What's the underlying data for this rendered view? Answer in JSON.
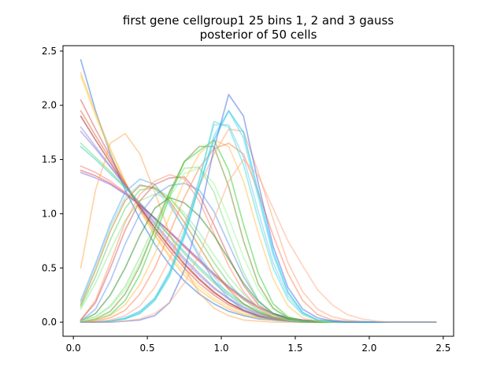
{
  "chart_data": {
    "type": "line",
    "title": "first gene cellgroup1 25 bins 1, 2 and 3 gauss",
    "subtitle": "posterior of 50 cells",
    "xlabel": "",
    "ylabel": "",
    "xlim": [
      -0.07,
      2.57
    ],
    "ylim": [
      -0.13,
      2.55
    ],
    "xticks": [
      0.0,
      0.5,
      1.0,
      1.5,
      2.0,
      2.5
    ],
    "xtick_labels": [
      "0.0",
      "0.5",
      "1.0",
      "1.5",
      "2.0",
      "2.5"
    ],
    "yticks": [
      0.0,
      0.5,
      1.0,
      1.5,
      2.0,
      2.5
    ],
    "ytick_labels": [
      "0.0",
      "0.5",
      "1.0",
      "1.5",
      "2.0",
      "2.5"
    ],
    "grid": false,
    "x": [
      0.05,
      0.15,
      0.25,
      0.35,
      0.45,
      0.55,
      0.65,
      0.75,
      0.85,
      0.95,
      1.05,
      1.15,
      1.25,
      1.35,
      1.45,
      1.55,
      1.65,
      1.75,
      1.85,
      1.95,
      2.05,
      2.15,
      2.25,
      2.35,
      2.45
    ],
    "series": [
      {
        "color": "#1f77d4",
        "values": [
          2.42,
          1.95,
          1.55,
          1.22,
          0.95,
          0.72,
          0.53,
          0.38,
          0.26,
          0.17,
          0.1,
          0.06,
          0.03,
          0.02,
          0.01,
          0.0,
          0.0,
          0.0,
          0.0,
          0.0,
          0.0,
          0.0,
          0.0,
          0.0,
          0.0
        ]
      },
      {
        "color": "#ffb347",
        "values": [
          2.3,
          1.93,
          1.6,
          1.3,
          1.03,
          0.8,
          0.6,
          0.43,
          0.3,
          0.2,
          0.12,
          0.07,
          0.04,
          0.02,
          0.01,
          0.0,
          0.0,
          0.0,
          0.0,
          0.0,
          0.0,
          0.0,
          0.0,
          0.0,
          0.0
        ]
      },
      {
        "color": "#ffd24d",
        "values": [
          2.27,
          1.9,
          1.58,
          1.29,
          1.03,
          0.81,
          0.62,
          0.46,
          0.33,
          0.22,
          0.14,
          0.08,
          0.04,
          0.02,
          0.01,
          0.0,
          0.0,
          0.0,
          0.0,
          0.0,
          0.0,
          0.0,
          0.0,
          0.0,
          0.0
        ]
      },
      {
        "color": "#d9534f",
        "values": [
          2.05,
          1.78,
          1.53,
          1.28,
          1.05,
          0.84,
          0.66,
          0.5,
          0.36,
          0.25,
          0.16,
          0.1,
          0.05,
          0.03,
          0.01,
          0.0,
          0.0,
          0.0,
          0.0,
          0.0,
          0.0,
          0.0,
          0.0,
          0.0,
          0.0
        ]
      },
      {
        "color": "#e8623a",
        "values": [
          1.95,
          1.72,
          1.5,
          1.28,
          1.07,
          0.87,
          0.69,
          0.53,
          0.39,
          0.27,
          0.18,
          0.11,
          0.06,
          0.03,
          0.01,
          0.0,
          0.0,
          0.0,
          0.0,
          0.0,
          0.0,
          0.0,
          0.0,
          0.0,
          0.0
        ]
      },
      {
        "color": "#a01818",
        "values": [
          1.9,
          1.68,
          1.47,
          1.26,
          1.06,
          0.87,
          0.7,
          0.54,
          0.4,
          0.28,
          0.18,
          0.11,
          0.06,
          0.03,
          0.01,
          0.0,
          0.0,
          0.0,
          0.0,
          0.0,
          0.0,
          0.0,
          0.0,
          0.0,
          0.0
        ]
      },
      {
        "color": "#8c8cd9",
        "values": [
          1.8,
          1.62,
          1.44,
          1.26,
          1.08,
          0.9,
          0.73,
          0.57,
          0.43,
          0.31,
          0.21,
          0.13,
          0.07,
          0.04,
          0.02,
          0.01,
          0.0,
          0.0,
          0.0,
          0.0,
          0.0,
          0.0,
          0.0,
          0.0,
          0.0
        ]
      },
      {
        "color": "#9370db",
        "values": [
          1.76,
          1.6,
          1.43,
          1.26,
          1.09,
          0.92,
          0.75,
          0.59,
          0.45,
          0.32,
          0.22,
          0.14,
          0.08,
          0.04,
          0.02,
          0.01,
          0.0,
          0.0,
          0.0,
          0.0,
          0.0,
          0.0,
          0.0,
          0.0,
          0.0
        ]
      },
      {
        "color": "#66dd66",
        "values": [
          1.65,
          1.52,
          1.39,
          1.25,
          1.1,
          0.95,
          0.79,
          0.63,
          0.49,
          0.36,
          0.25,
          0.16,
          0.09,
          0.05,
          0.02,
          0.01,
          0.0,
          0.0,
          0.0,
          0.0,
          0.0,
          0.0,
          0.0,
          0.0,
          0.0
        ]
      },
      {
        "color": "#33c8c8",
        "values": [
          1.62,
          1.5,
          1.37,
          1.24,
          1.1,
          0.95,
          0.8,
          0.65,
          0.51,
          0.38,
          0.27,
          0.17,
          0.1,
          0.05,
          0.02,
          0.01,
          0.0,
          0.0,
          0.0,
          0.0,
          0.0,
          0.0,
          0.0,
          0.0,
          0.0
        ]
      },
      {
        "color": "#f08080",
        "values": [
          1.44,
          1.38,
          1.3,
          1.2,
          1.09,
          0.96,
          0.83,
          0.69,
          0.56,
          0.43,
          0.31,
          0.21,
          0.13,
          0.07,
          0.04,
          0.02,
          0.01,
          0.0,
          0.0,
          0.0,
          0.0,
          0.0,
          0.0,
          0.0,
          0.0
        ]
      },
      {
        "color": "#e04848",
        "values": [
          1.4,
          1.35,
          1.28,
          1.19,
          1.08,
          0.96,
          0.83,
          0.7,
          0.57,
          0.44,
          0.32,
          0.22,
          0.14,
          0.08,
          0.04,
          0.02,
          0.01,
          0.0,
          0.0,
          0.0,
          0.0,
          0.0,
          0.0,
          0.0,
          0.0
        ]
      },
      {
        "color": "#7b68ee",
        "values": [
          1.38,
          1.33,
          1.27,
          1.18,
          1.08,
          0.96,
          0.84,
          0.71,
          0.58,
          0.45,
          0.33,
          0.23,
          0.14,
          0.08,
          0.04,
          0.02,
          0.01,
          0.0,
          0.0,
          0.0,
          0.0,
          0.0,
          0.0,
          0.0,
          0.0
        ]
      },
      {
        "color": "#ffa94d",
        "values": [
          0.5,
          1.22,
          1.65,
          1.74,
          1.55,
          1.2,
          0.82,
          0.5,
          0.27,
          0.13,
          0.06,
          0.02,
          0.01,
          0.0,
          0.0,
          0.0,
          0.0,
          0.0,
          0.0,
          0.0,
          0.0,
          0.0,
          0.0,
          0.0,
          0.0
        ]
      },
      {
        "color": "#5aa6e8",
        "values": [
          0.2,
          0.54,
          0.91,
          1.2,
          1.32,
          1.27,
          1.1,
          0.86,
          0.6,
          0.38,
          0.22,
          0.11,
          0.05,
          0.02,
          0.01,
          0.0,
          0.0,
          0.0,
          0.0,
          0.0,
          0.0,
          0.0,
          0.0,
          0.0,
          0.0
        ]
      },
      {
        "color": "#87ceeb",
        "values": [
          0.18,
          0.52,
          0.88,
          1.15,
          1.27,
          1.23,
          1.08,
          0.86,
          0.63,
          0.42,
          0.25,
          0.14,
          0.07,
          0.03,
          0.01,
          0.0,
          0.0,
          0.0,
          0.0,
          0.0,
          0.0,
          0.0,
          0.0,
          0.0,
          0.0
        ]
      },
      {
        "color": "#b8860b",
        "values": [
          0.16,
          0.48,
          0.84,
          1.12,
          1.26,
          1.24,
          1.12,
          0.92,
          0.7,
          0.48,
          0.3,
          0.17,
          0.09,
          0.04,
          0.02,
          0.01,
          0.0,
          0.0,
          0.0,
          0.0,
          0.0,
          0.0,
          0.0,
          0.0,
          0.0
        ]
      },
      {
        "color": "#66cc66",
        "values": [
          0.14,
          0.42,
          0.76,
          1.05,
          1.22,
          1.24,
          1.15,
          0.98,
          0.77,
          0.55,
          0.36,
          0.21,
          0.11,
          0.05,
          0.02,
          0.01,
          0.0,
          0.0,
          0.0,
          0.0,
          0.0,
          0.0,
          0.0,
          0.0,
          0.0
        ]
      },
      {
        "color": "#90ee90",
        "values": [
          0.12,
          0.36,
          0.66,
          0.94,
          1.12,
          1.18,
          1.14,
          1.01,
          0.83,
          0.62,
          0.42,
          0.26,
          0.14,
          0.07,
          0.03,
          0.01,
          0.0,
          0.0,
          0.0,
          0.0,
          0.0,
          0.0,
          0.0,
          0.0,
          0.0
        ]
      },
      {
        "color": "#ff8c69",
        "values": [
          0.02,
          0.2,
          0.55,
          0.92,
          1.18,
          1.3,
          1.36,
          1.32,
          1.12,
          0.82,
          0.52,
          0.28,
          0.13,
          0.05,
          0.02,
          0.01,
          0.0,
          0.0,
          0.0,
          0.0,
          0.0,
          0.0,
          0.0,
          0.0,
          0.0
        ]
      },
      {
        "color": "#cd5c5c",
        "values": [
          0.02,
          0.18,
          0.5,
          0.85,
          1.12,
          1.27,
          1.33,
          1.34,
          1.18,
          0.9,
          0.6,
          0.34,
          0.16,
          0.07,
          0.03,
          0.01,
          0.0,
          0.0,
          0.0,
          0.0,
          0.0,
          0.0,
          0.0,
          0.0,
          0.0
        ]
      },
      {
        "color": "#6495ed",
        "values": [
          0.01,
          0.12,
          0.38,
          0.72,
          1.0,
          1.17,
          1.26,
          1.28,
          1.22,
          1.02,
          0.72,
          0.42,
          0.2,
          0.08,
          0.03,
          0.01,
          0.0,
          0.0,
          0.0,
          0.0,
          0.0,
          0.0,
          0.0,
          0.0,
          0.0
        ]
      },
      {
        "color": "#228b22",
        "values": [
          0.01,
          0.08,
          0.25,
          0.5,
          0.8,
          1.05,
          1.15,
          1.1,
          0.98,
          0.8,
          0.58,
          0.36,
          0.19,
          0.08,
          0.03,
          0.01,
          0.0,
          0.0,
          0.0,
          0.0,
          0.0,
          0.0,
          0.0,
          0.0,
          0.0
        ]
      },
      {
        "color": "#7fe07f",
        "values": [
          0.01,
          0.05,
          0.15,
          0.33,
          0.6,
          0.9,
          1.2,
          1.42,
          1.43,
          1.2,
          0.82,
          0.46,
          0.2,
          0.07,
          0.02,
          0.01,
          0.0,
          0.0,
          0.0,
          0.0,
          0.0,
          0.0,
          0.0,
          0.0,
          0.0
        ]
      },
      {
        "color": "#98fb98",
        "values": [
          0.01,
          0.05,
          0.14,
          0.3,
          0.55,
          0.85,
          1.15,
          1.37,
          1.42,
          1.28,
          0.96,
          0.6,
          0.3,
          0.12,
          0.04,
          0.01,
          0.0,
          0.0,
          0.0,
          0.0,
          0.0,
          0.0,
          0.0,
          0.0,
          0.0
        ]
      },
      {
        "color": "#6b8e23",
        "values": [
          0.0,
          0.03,
          0.1,
          0.26,
          0.52,
          0.86,
          1.2,
          1.48,
          1.62,
          1.62,
          1.25,
          0.75,
          0.35,
          0.13,
          0.04,
          0.01,
          0.0,
          0.0,
          0.0,
          0.0,
          0.0,
          0.0,
          0.0,
          0.0,
          0.0
        ]
      },
      {
        "color": "#32cd32",
        "values": [
          0.0,
          0.02,
          0.07,
          0.2,
          0.44,
          0.78,
          1.16,
          1.48,
          1.58,
          1.68,
          1.4,
          0.9,
          0.45,
          0.17,
          0.05,
          0.01,
          0.0,
          0.0,
          0.0,
          0.0,
          0.0,
          0.0,
          0.0,
          0.0,
          0.0
        ]
      },
      {
        "color": "#ffc04d",
        "values": [
          0.0,
          0.02,
          0.06,
          0.16,
          0.35,
          0.63,
          0.97,
          1.3,
          1.55,
          1.68,
          1.62,
          1.3,
          0.82,
          0.4,
          0.15,
          0.04,
          0.01,
          0.0,
          0.0,
          0.0,
          0.0,
          0.0,
          0.0,
          0.0,
          0.0
        ]
      },
      {
        "color": "#ff7f50",
        "values": [
          0.0,
          0.01,
          0.04,
          0.11,
          0.26,
          0.5,
          0.82,
          1.15,
          1.42,
          1.6,
          1.65,
          1.55,
          1.2,
          0.8,
          0.45,
          0.2,
          0.07,
          0.02,
          0.01,
          0.0,
          0.0,
          0.0,
          0.0,
          0.0,
          0.0
        ]
      },
      {
        "color": "#ffa07a",
        "values": [
          0.0,
          0.0,
          0.02,
          0.06,
          0.15,
          0.32,
          0.58,
          0.9,
          1.25,
          1.55,
          1.78,
          1.76,
          1.38,
          0.95,
          0.55,
          0.28,
          0.12,
          0.05,
          0.02,
          0.01,
          0.0,
          0.0,
          0.0,
          0.0,
          0.0
        ]
      },
      {
        "color": "#00bfff",
        "values": [
          0.0,
          0.0,
          0.01,
          0.04,
          0.1,
          0.22,
          0.45,
          0.8,
          1.25,
          1.68,
          1.95,
          1.75,
          1.2,
          0.65,
          0.28,
          0.09,
          0.02,
          0.01,
          0.0,
          0.0,
          0.0,
          0.0,
          0.0,
          0.0,
          0.0
        ]
      },
      {
        "color": "#4fd6e0",
        "values": [
          0.0,
          0.0,
          0.01,
          0.03,
          0.08,
          0.2,
          0.42,
          0.78,
          1.25,
          1.72,
          1.95,
          1.7,
          1.15,
          0.62,
          0.27,
          0.09,
          0.02,
          0.01,
          0.0,
          0.0,
          0.0,
          0.0,
          0.0,
          0.0,
          0.0
        ]
      },
      {
        "color": "#7ec8f0",
        "values": [
          0.0,
          0.0,
          0.01,
          0.03,
          0.09,
          0.22,
          0.47,
          0.85,
          1.32,
          1.82,
          1.82,
          1.52,
          1.02,
          0.55,
          0.24,
          0.08,
          0.02,
          0.01,
          0.0,
          0.0,
          0.0,
          0.0,
          0.0,
          0.0,
          0.0
        ]
      },
      {
        "color": "#40e0d0",
        "values": [
          0.0,
          0.0,
          0.01,
          0.03,
          0.08,
          0.2,
          0.44,
          0.82,
          1.3,
          1.85,
          1.8,
          1.45,
          0.95,
          0.5,
          0.21,
          0.07,
          0.02,
          0.0,
          0.0,
          0.0,
          0.0,
          0.0,
          0.0,
          0.0,
          0.0
        ]
      },
      {
        "color": "#4169e1",
        "values": [
          0.0,
          0.0,
          0.0,
          0.01,
          0.02,
          0.06,
          0.18,
          0.48,
          0.96,
          1.6,
          2.1,
          1.9,
          1.28,
          0.7,
          0.32,
          0.12,
          0.04,
          0.01,
          0.0,
          0.0,
          0.0,
          0.0,
          0.0,
          0.0,
          0.0
        ]
      },
      {
        "color": "#ffaa88",
        "values": [
          0.0,
          0.0,
          0.0,
          0.01,
          0.03,
          0.08,
          0.18,
          0.36,
          0.62,
          0.95,
          1.3,
          1.5,
          1.35,
          1.05,
          0.75,
          0.52,
          0.3,
          0.16,
          0.07,
          0.03,
          0.01,
          0.0,
          0.0,
          0.0,
          0.0
        ]
      }
    ]
  }
}
